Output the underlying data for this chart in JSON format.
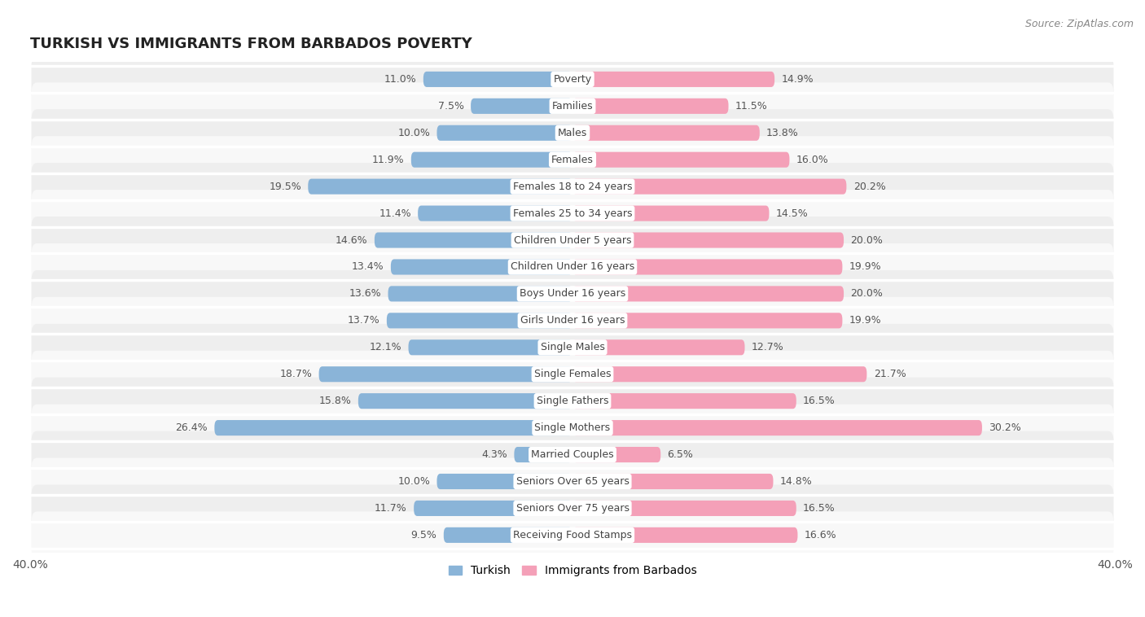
{
  "title": "TURKISH VS IMMIGRANTS FROM BARBADOS POVERTY",
  "source": "Source: ZipAtlas.com",
  "categories": [
    "Poverty",
    "Families",
    "Males",
    "Females",
    "Females 18 to 24 years",
    "Females 25 to 34 years",
    "Children Under 5 years",
    "Children Under 16 years",
    "Boys Under 16 years",
    "Girls Under 16 years",
    "Single Males",
    "Single Females",
    "Single Fathers",
    "Single Mothers",
    "Married Couples",
    "Seniors Over 65 years",
    "Seniors Over 75 years",
    "Receiving Food Stamps"
  ],
  "turkish": [
    11.0,
    7.5,
    10.0,
    11.9,
    19.5,
    11.4,
    14.6,
    13.4,
    13.6,
    13.7,
    12.1,
    18.7,
    15.8,
    26.4,
    4.3,
    10.0,
    11.7,
    9.5
  ],
  "barbados": [
    14.9,
    11.5,
    13.8,
    16.0,
    20.2,
    14.5,
    20.0,
    19.9,
    20.0,
    19.9,
    12.7,
    21.7,
    16.5,
    30.2,
    6.5,
    14.8,
    16.5,
    16.6
  ],
  "turkish_color": "#8ab4d8",
  "barbados_color": "#f4a0b8",
  "turkish_label": "Turkish",
  "barbados_label": "Immigrants from Barbados",
  "axis_max": 40.0,
  "bar_height": 0.58,
  "row_bg_even": "#eeeeee",
  "row_bg_odd": "#f8f8f8",
  "label_fontsize": 9.0,
  "value_fontsize": 9.0,
  "title_fontsize": 13,
  "source_fontsize": 9
}
